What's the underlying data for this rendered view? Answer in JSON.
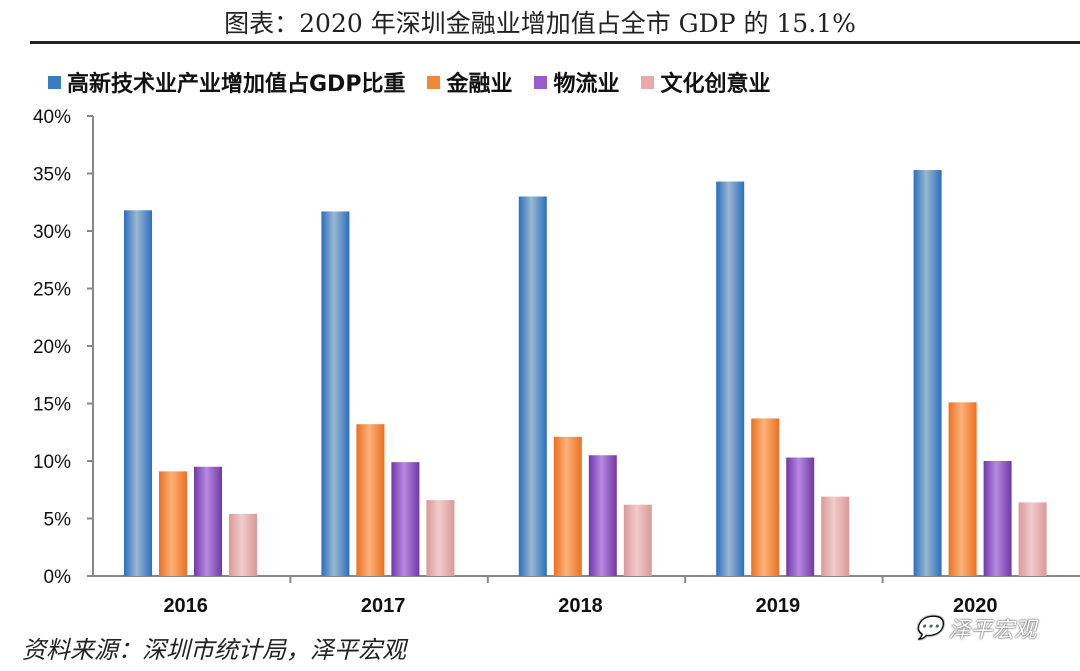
{
  "title": "图表：2020 年深圳金融业增加值占全市 GDP 的 15.1%",
  "source": "资料来源：深圳市统计局，泽平宏观",
  "watermark": "泽平宏观",
  "chart_data": {
    "type": "bar",
    "categories": [
      "2016",
      "2017",
      "2018",
      "2019",
      "2020"
    ],
    "ylim": [
      0,
      40
    ],
    "yticks": [
      "0%",
      "5%",
      "10%",
      "15%",
      "20%",
      "25%",
      "30%",
      "35%",
      "40%"
    ],
    "grid": false,
    "legend_position": "top",
    "series": [
      {
        "name": "高新技术业产业增加值占GDP比重",
        "color": "#3a7cc4",
        "values": [
          31.8,
          31.7,
          33.0,
          34.3,
          35.3
        ]
      },
      {
        "name": "金融业",
        "color": "#f0883a",
        "values": [
          9.1,
          13.2,
          12.1,
          13.7,
          15.1
        ]
      },
      {
        "name": "物流业",
        "color": "#9a5ccc",
        "values": [
          9.5,
          9.9,
          10.5,
          10.3,
          10.0
        ]
      },
      {
        "name": "文化创意业",
        "color": "#e8aaaa",
        "values": [
          5.4,
          6.6,
          6.2,
          6.9,
          6.4
        ]
      }
    ]
  }
}
